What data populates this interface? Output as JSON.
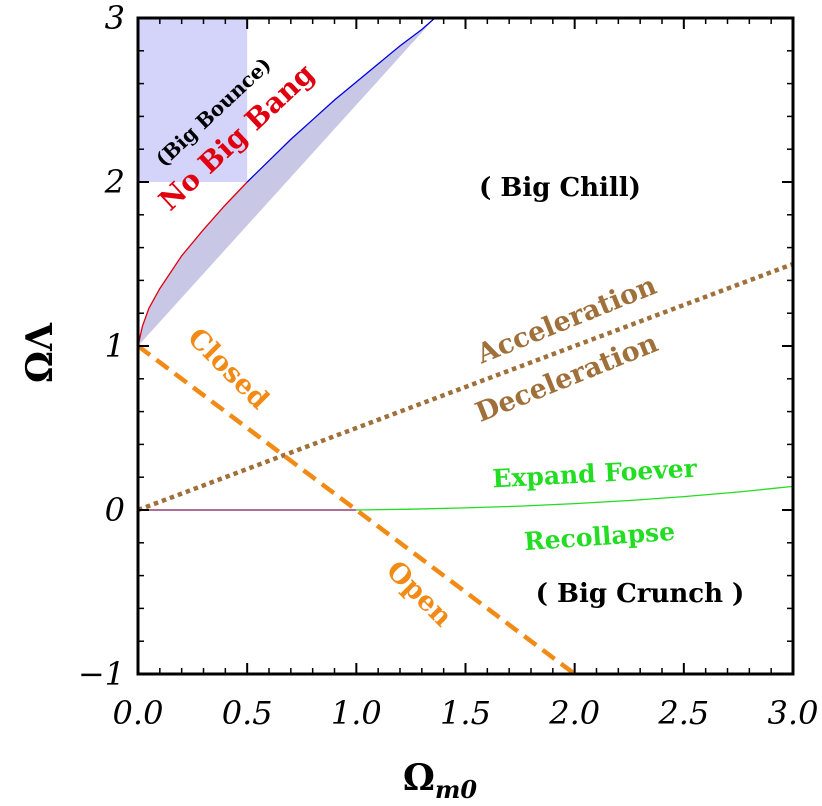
{
  "chart_data": {
    "type": "line",
    "title": "",
    "xlabel": "Ω",
    "xlabel_sub": "m0",
    "ylabel": "ΩΛ",
    "xlim": [
      0,
      3
    ],
    "ylim": [
      -1,
      3
    ],
    "x_ticks": [
      0,
      0.5,
      1.0,
      1.5,
      2.0,
      2.5,
      3.0
    ],
    "x_tick_labels": [
      "0.0",
      "0.5",
      "1.0",
      "1.5",
      "2.0",
      "2.5",
      "3.0"
    ],
    "y_ticks": [
      -1,
      0,
      1,
      2,
      3
    ],
    "y_tick_labels": [
      "−1",
      "0",
      "1",
      "2",
      "3"
    ],
    "grid": false,
    "colors": {
      "no_big_bang_fill": "#c8c8e6",
      "no_big_bang_fill_light": "#d4d4fa",
      "no_big_bang_boundary_lower": "#e0000f",
      "no_big_bang_boundary_upper": "#0000e0",
      "expand_recollapse": "#22dd22",
      "expand_recollapse_left": "#7a1a5a",
      "acceleration": "#a0703a",
      "flat": "#f28a16",
      "big_chill": "#000000",
      "big_crunch": "#000000"
    },
    "series": [
      {
        "name": "Closed / Open",
        "style": "dashed",
        "x": [
          0,
          2
        ],
        "y": [
          1,
          -1
        ]
      },
      {
        "name": "Acceleration / Deceleration",
        "style": "dotted",
        "x": [
          0,
          3
        ],
        "y": [
          0,
          1.5
        ]
      },
      {
        "name": "Expand Foever / Recollapse",
        "style": "solid",
        "x": [
          0,
          1.0,
          1.25,
          1.5,
          1.75,
          2.0,
          2.25,
          2.5,
          2.75,
          3.0
        ],
        "y": [
          0,
          0,
          0.005,
          0.013,
          0.024,
          0.039,
          0.058,
          0.082,
          0.11,
          0.144
        ]
      },
      {
        "name": "No Big Bang boundary",
        "style": "solid",
        "x": [
          0,
          0.02,
          0.05,
          0.1,
          0.2,
          0.3,
          0.4,
          0.5,
          0.6,
          0.7,
          0.8,
          0.9,
          1.0,
          1.1,
          1.2,
          1.3,
          1.36
        ],
        "y": [
          1.0,
          1.12,
          1.23,
          1.35,
          1.55,
          1.71,
          1.86,
          2.0,
          2.13,
          2.26,
          2.38,
          2.5,
          2.61,
          2.72,
          2.83,
          2.93,
          3.0
        ]
      }
    ],
    "annotations": {
      "big_bounce": "(Big Bounce)",
      "no_big_bang": "No  Big  Bang",
      "big_chill": "( Big  Chill)",
      "acceleration": "Acceleration",
      "deceleration": "Deceleration",
      "closed": "Closed",
      "open": "Open",
      "expand": "Expand Foever",
      "recollapse": "Recollapse",
      "big_crunch": "( Big  Crunch )"
    }
  }
}
